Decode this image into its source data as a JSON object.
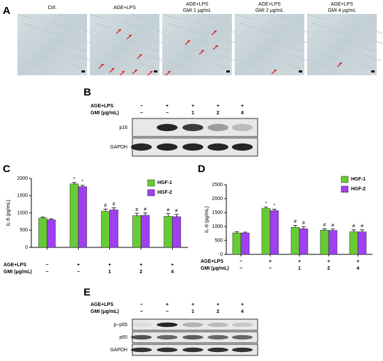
{
  "panel_a": {
    "label": "A",
    "columns": [
      {
        "lines": [
          "Ctrl."
        ]
      },
      {
        "lines": [
          "AGE+LPS"
        ]
      },
      {
        "lines": [
          "AGE+LPS",
          "GMI 1 μg/mL"
        ]
      },
      {
        "lines": [
          "AGE+LPS",
          "GMI 2 μg/mL"
        ]
      },
      {
        "lines": [
          "AGE+LPS",
          "GMI 4 μg/mL"
        ]
      }
    ]
  },
  "panel_b": {
    "label": "B",
    "conditions": [
      {
        "label": "AGE+LPS",
        "values": [
          "−",
          "+",
          "+",
          "+",
          "+"
        ]
      },
      {
        "label": "GMI (μg/mL)",
        "values": [
          "−",
          "−",
          "1",
          "2",
          "4"
        ]
      }
    ],
    "bands": [
      "p16",
      "GAPDH"
    ]
  },
  "chart_data": [
    {
      "type": "bar",
      "panel_label": "C",
      "y_label": "IL-6 (pg/mL)",
      "categories": [
        null,
        null,
        null,
        null,
        null
      ],
      "conditions": [
        {
          "label": "AGE+LPS",
          "values": [
            "−",
            "+",
            "+",
            "+",
            "+"
          ]
        },
        {
          "label": "GMI (μg/mL)",
          "values": [
            "−",
            "−",
            "1",
            "2",
            "4"
          ]
        }
      ],
      "series": [
        {
          "name": "HGF-1",
          "color": "#66cc33",
          "values": [
            850,
            1840,
            1050,
            920,
            900
          ],
          "errors": [
            30,
            40,
            60,
            70,
            80
          ],
          "markers": [
            null,
            "*",
            "#",
            "#",
            "#"
          ]
        },
        {
          "name": "HGF-2",
          "color": "#a040f0",
          "values": [
            800,
            1760,
            1090,
            930,
            890
          ],
          "errors": [
            30,
            40,
            60,
            70,
            70
          ],
          "markers": [
            null,
            "*",
            "#",
            "#",
            "#"
          ]
        }
      ],
      "ylim": [
        0,
        2000
      ],
      "yticks": [
        0,
        500,
        1000,
        1500,
        2000
      ]
    },
    {
      "type": "bar",
      "panel_label": "D",
      "y_label": "IL-8 (pg/mL)",
      "categories": [
        null,
        null,
        null,
        null,
        null
      ],
      "conditions": [
        {
          "label": "AGE+LPS",
          "values": [
            "−",
            "+",
            "+",
            "+",
            "+"
          ]
        },
        {
          "label": "GMI (μg/mL)",
          "values": [
            "−",
            "−",
            "1",
            "2",
            "4"
          ]
        }
      ],
      "series": [
        {
          "name": "HGF-1",
          "color": "#66cc33",
          "values": [
            770,
            1650,
            970,
            870,
            810
          ],
          "errors": [
            40,
            50,
            70,
            50,
            70
          ],
          "markers": [
            null,
            "*",
            "#",
            "#",
            "#"
          ]
        },
        {
          "name": "HGF-2",
          "color": "#a040f0",
          "values": [
            770,
            1570,
            920,
            860,
            810
          ],
          "errors": [
            30,
            50,
            70,
            50,
            70
          ],
          "markers": [
            null,
            "*",
            "#",
            "#",
            "#"
          ]
        }
      ],
      "ylim": [
        0,
        2500
      ],
      "yticks": [
        0,
        500,
        1000,
        1500,
        2000,
        2500
      ]
    }
  ],
  "panel_e": {
    "label": "E",
    "conditions": [
      {
        "label": "AGE+LPS",
        "values": [
          "−",
          "+",
          "+",
          "+",
          "+"
        ]
      },
      {
        "label": "GMI (μg/mL)",
        "values": [
          "−",
          "−",
          "1",
          "2",
          "4"
        ]
      }
    ],
    "bands": [
      "p−p65",
      "p65",
      "GAPDH"
    ]
  }
}
